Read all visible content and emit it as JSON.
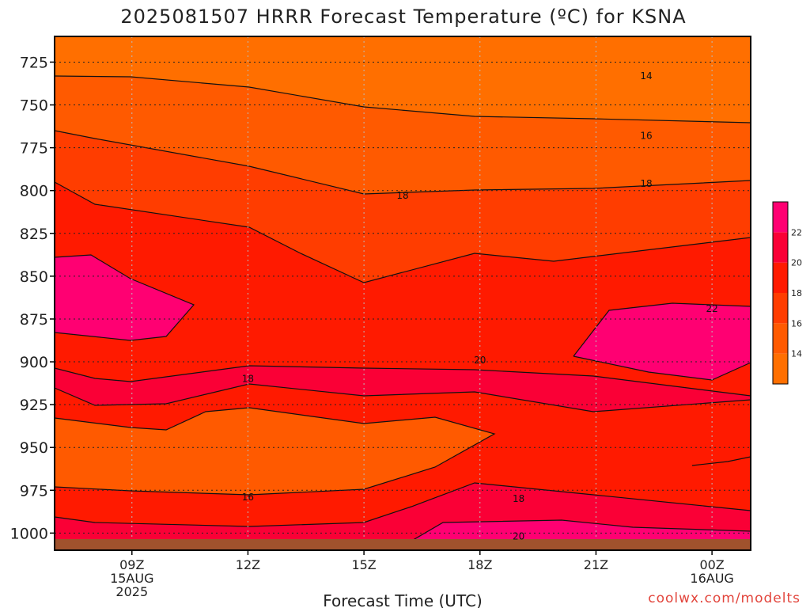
{
  "chart_data": {
    "type": "heatmap",
    "title": "2025081507 HRRR Forecast Temperature (ºC) for KSNA",
    "xlabel": "Forecast Time (UTC)",
    "ylabel": "",
    "y_ticks": [
      725,
      750,
      775,
      800,
      825,
      850,
      875,
      900,
      925,
      950,
      975,
      1000
    ],
    "y_tick_labels": [
      "725",
      "750",
      "775",
      "800",
      "825",
      "850",
      "875",
      "900",
      "925",
      "950",
      "975",
      "1000"
    ],
    "ylim_hpa": [
      1010,
      710
    ],
    "xlim_hours": [
      7,
      25
    ],
    "x_ticks": [
      {
        "hour": 9,
        "lines": [
          "09Z",
          "15AUG",
          "2025"
        ]
      },
      {
        "hour": 12,
        "lines": [
          "12Z"
        ]
      },
      {
        "hour": 15,
        "lines": [
          "15Z"
        ]
      },
      {
        "hour": 18,
        "lines": [
          "18Z"
        ]
      },
      {
        "hour": 21,
        "lines": [
          "21Z"
        ]
      },
      {
        "hour": 24,
        "lines": [
          "00Z",
          "16AUG"
        ]
      }
    ],
    "grid": true,
    "colorbar": {
      "placement": "right",
      "levels": [
        {
          "min": 12,
          "max": 14,
          "color": "#ff6f00"
        },
        {
          "min": 14,
          "max": 16,
          "color": "#ff5a00"
        },
        {
          "min": 16,
          "max": 18,
          "color": "#ff3d00"
        },
        {
          "min": 18,
          "max": 20,
          "color": "#ff1a00"
        },
        {
          "min": 20,
          "max": 22,
          "color": "#fa0036"
        },
        {
          "min": 22,
          "max": 24,
          "color": "#ff0072"
        }
      ],
      "tick_labels": [
        "14",
        "16",
        "18",
        "20",
        "22"
      ]
    },
    "contour_labels": [
      {
        "value": "14",
        "hour": 22.3,
        "hpa": 733
      },
      {
        "value": "16",
        "hour": 22.3,
        "hpa": 768
      },
      {
        "value": "18",
        "hour": 22.3,
        "hpa": 796
      },
      {
        "value": "18",
        "hour": 16.0,
        "hpa": 803
      },
      {
        "value": "22",
        "hour": 24.0,
        "hpa": 869
      },
      {
        "value": "20",
        "hour": 18.0,
        "hpa": 899
      },
      {
        "value": "18",
        "hour": 12.0,
        "hpa": 910
      },
      {
        "value": "16",
        "hour": 12.0,
        "hpa": 979
      },
      {
        "value": "18",
        "hour": 19.0,
        "hpa": 980
      },
      {
        "value": "20",
        "hour": 19.0,
        "hpa": 1002
      }
    ],
    "surface_color": "#a0522d"
  },
  "credit": "coolwx.com/modelts"
}
